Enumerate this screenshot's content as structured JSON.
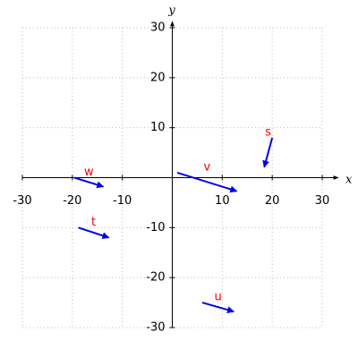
{
  "chart_data": {
    "type": "quiver",
    "x_label": "x",
    "y_label": "y",
    "xlim": [
      -30,
      30
    ],
    "ylim": [
      -30,
      30
    ],
    "xticks": [
      -30,
      -20,
      -10,
      10,
      20,
      30
    ],
    "yticks": [
      -30,
      -20,
      -10,
      10,
      20,
      30
    ],
    "grid": true,
    "color": "#0000ee",
    "label_color": "#ee0000",
    "vectors": [
      {
        "name": "s",
        "x0": 20,
        "y0": 8,
        "x1": 18.4,
        "y1": 2.1
      },
      {
        "name": "w",
        "x0": -19.6,
        "y0": 0,
        "x1": -13.8,
        "y1": -1.8
      },
      {
        "name": "v",
        "x0": 1,
        "y0": 1,
        "x1": 12.9,
        "y1": -2.7
      },
      {
        "name": "t",
        "x0": -18.8,
        "y0": -10,
        "x1": -12.7,
        "y1": -12
      },
      {
        "name": "u",
        "x0": 6,
        "y0": -25,
        "x1": 12.3,
        "y1": -26.8
      }
    ]
  }
}
